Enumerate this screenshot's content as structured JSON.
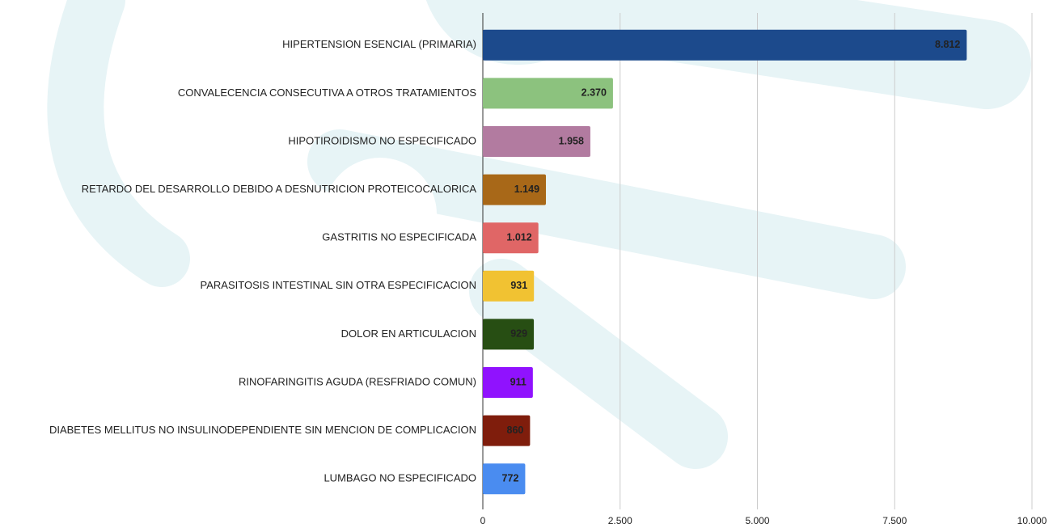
{
  "chart_data": {
    "type": "bar",
    "orientation": "horizontal",
    "categories": [
      "HIPERTENSION ESENCIAL (PRIMARIA)",
      "CONVALECENCIA CONSECUTIVA A OTROS TRATAMIENTOS",
      "HIPOTIROIDISMO NO ESPECIFICADO",
      "RETARDO DEL DESARROLLO DEBIDO A DESNUTRICION PROTEICOCALORICA",
      "GASTRITIS NO ESPECIFICADA",
      "PARASITOSIS INTESTINAL SIN OTRA ESPECIFICACION",
      "DOLOR EN ARTICULACION",
      "RINOFARINGITIS AGUDA (RESFRIADO COMUN)",
      "DIABETES MELLITUS NO INSULINODEPENDIENTE SIN MENCION DE COMPLICACION",
      "LUMBAGO NO ESPECIFICADO"
    ],
    "values": [
      8812,
      2370,
      1958,
      1149,
      1012,
      931,
      929,
      911,
      860,
      772
    ],
    "value_labels": [
      "8.812",
      "2.370",
      "1.958",
      "1.149",
      "1.012",
      "931",
      "929",
      "911",
      "860",
      "772"
    ],
    "colors": [
      "#1c4a8c",
      "#8cc27e",
      "#b27ba0",
      "#a86818",
      "#e06666",
      "#f1c232",
      "#274e13",
      "#9012fe",
      "#7f1d0c",
      "#4a8cf0"
    ],
    "xlim": [
      0,
      10000
    ],
    "xticks": [
      0,
      {
        "value": 2500,
        "label": "2.500"
      },
      {
        "value": 5000,
        "label": "5.000"
      },
      {
        "value": 7500,
        "label": "7.500"
      },
      {
        "value": 10000,
        "label": "10.000"
      }
    ],
    "grid": true
  }
}
